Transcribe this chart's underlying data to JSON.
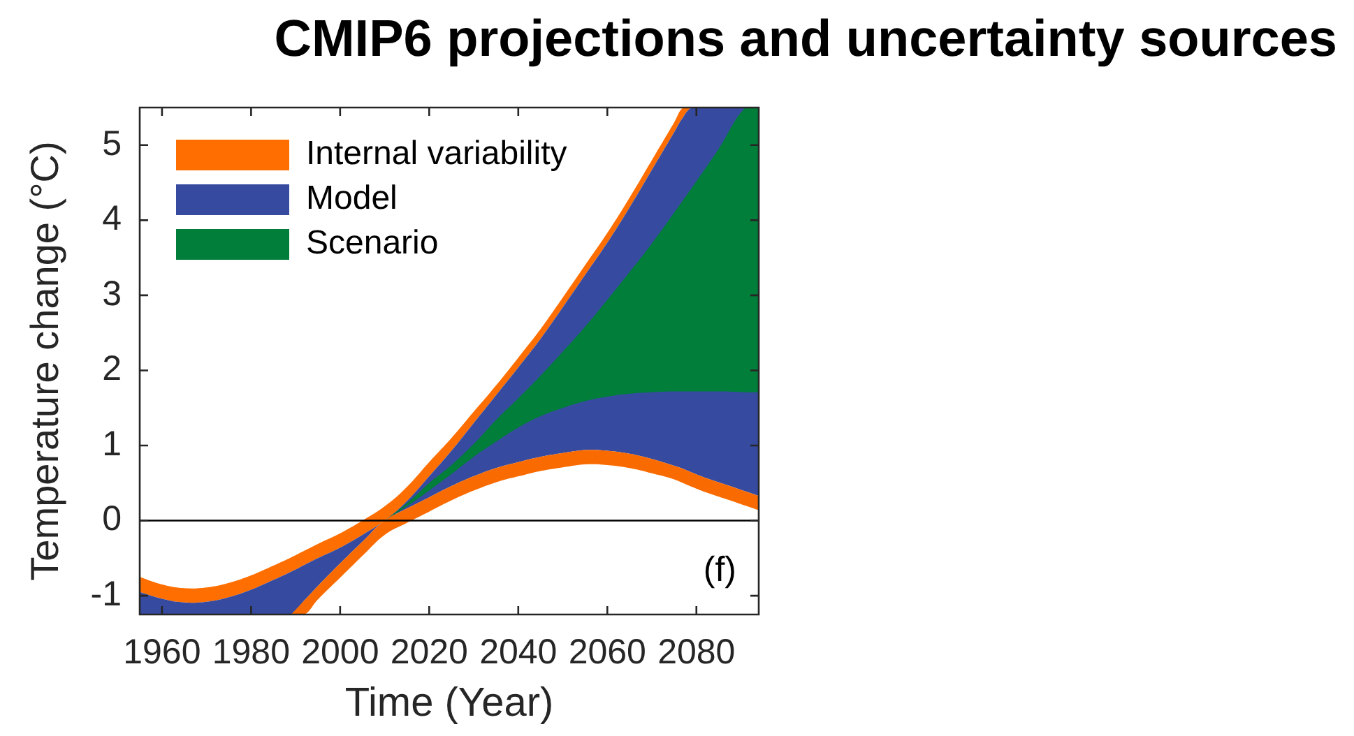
{
  "chart_data": {
    "type": "area",
    "title": "CMIP6 projections and uncertainty sources",
    "xlabel": "Time (Year)",
    "ylabel": "Temperature change (°C)",
    "xlim": [
      1955,
      2094
    ],
    "xticks": [
      1960,
      1980,
      2000,
      2020,
      2040,
      2060,
      2080
    ],
    "ylim": [
      -1.25,
      5.5
    ],
    "yticks": [
      -1,
      0,
      1,
      2,
      3,
      4,
      5
    ],
    "grid": false,
    "legend": "top left",
    "ref_lines": [
      {
        "axis": "y",
        "value": 0,
        "color": "#000000"
      }
    ],
    "annotations": [
      "(f)"
    ],
    "series": [
      {
        "name": "Internal variability",
        "color": "#ff6e00",
        "x": [
          1955,
          1960,
          1965,
          1970,
          1975,
          1980,
          1985,
          1989,
          1992,
          1995,
          2000,
          2005,
          2010,
          2015,
          2020,
          2025,
          2030,
          2035,
          2040,
          2045,
          2050,
          2055,
          2060,
          2065,
          2070,
          2075,
          2077,
          2079,
          2082,
          2086,
          2090,
          2094
        ],
        "values": [
          null,
          null,
          null,
          null,
          null,
          null,
          null,
          null,
          null,
          null,
          null,
          null,
          null,
          null,
          null,
          null,
          null,
          null,
          null,
          null,
          null,
          null,
          null,
          null,
          null,
          null,
          null,
          null,
          null,
          null,
          null,
          null
        ],
        "upper": [
          -0.75,
          -0.85,
          -0.9,
          -0.89,
          -0.83,
          -0.73,
          -0.6,
          -0.49,
          -0.4,
          -0.31,
          -0.17,
          0.0,
          0.19,
          0.45,
          0.78,
          1.1,
          1.45,
          1.8,
          2.17,
          2.55,
          2.97,
          3.4,
          3.83,
          4.3,
          4.8,
          5.3,
          5.5,
          5.5,
          5.5,
          5.5,
          5.5,
          5.5
        ],
        "lower": [
          -0.95,
          -1.04,
          -1.09,
          -1.08,
          -1.02,
          -0.92,
          -0.79,
          -0.68,
          -0.59,
          -0.5,
          -0.36,
          -0.19,
          0.0,
          0.26,
          0.59,
          0.93,
          1.3,
          1.67,
          2.04,
          2.42,
          2.84,
          3.27,
          3.7,
          4.17,
          4.67,
          5.17,
          5.37,
          5.5,
          5.5,
          5.5,
          5.5,
          5.5
        ]
      },
      {
        "name": "Model",
        "color": "#364b9f",
        "x": [
          1955,
          1960,
          1965,
          1970,
          1975,
          1980,
          1985,
          1989,
          1992,
          1995,
          2000,
          2005,
          2010,
          2015,
          2020,
          2025,
          2030,
          2035,
          2040,
          2045,
          2050,
          2055,
          2060,
          2065,
          2070,
          2075,
          2077,
          2079,
          2082,
          2086,
          2090,
          2094
        ],
        "values": [
          null,
          null,
          null,
          null,
          null,
          null,
          null,
          null,
          null,
          null,
          null,
          null,
          null,
          null,
          null,
          null,
          null,
          null,
          null,
          null,
          null,
          null,
          null,
          null,
          null,
          null,
          null,
          null,
          null,
          null,
          null,
          null
        ],
        "upper": [
          -0.95,
          -1.04,
          -1.09,
          -1.08,
          -1.02,
          -0.92,
          -0.79,
          -0.68,
          -0.59,
          -0.5,
          -0.36,
          -0.19,
          0.0,
          0.26,
          0.59,
          0.93,
          1.3,
          1.67,
          2.04,
          2.42,
          2.84,
          3.27,
          3.7,
          4.17,
          4.67,
          5.17,
          5.37,
          5.5,
          5.5,
          5.5,
          5.5,
          5.5
        ],
        "lower": [
          -1.25,
          -1.25,
          -1.25,
          -1.25,
          -1.25,
          -1.25,
          -1.25,
          -1.25,
          -1.06,
          -0.87,
          -0.57,
          -0.28,
          0.0,
          0.16,
          0.31,
          0.46,
          0.59,
          0.7,
          0.78,
          0.85,
          0.9,
          0.94,
          0.93,
          0.89,
          0.82,
          0.73,
          0.69,
          0.64,
          0.57,
          0.49,
          0.41,
          0.33
        ]
      },
      {
        "name": "Scenario",
        "color": "#007e3a",
        "x": [
          2010,
          2015,
          2020,
          2025,
          2030,
          2035,
          2040,
          2045,
          2050,
          2055,
          2060,
          2065,
          2070,
          2075,
          2080,
          2085,
          2091,
          2094
        ],
        "values": [
          null,
          null,
          null,
          null,
          null,
          null,
          null,
          null,
          null,
          null,
          null,
          null,
          null,
          null,
          null,
          null,
          null,
          null
        ],
        "upper": [
          0.0,
          0.23,
          0.5,
          0.74,
          1.02,
          1.34,
          1.63,
          1.93,
          2.25,
          2.58,
          2.94,
          3.31,
          3.69,
          4.1,
          4.52,
          4.95,
          5.5,
          5.5
        ],
        "lower": [
          0.0,
          0.19,
          0.4,
          0.62,
          0.85,
          1.05,
          1.24,
          1.39,
          1.5,
          1.59,
          1.65,
          1.69,
          1.71,
          1.72,
          1.72,
          1.72,
          1.71,
          1.71
        ]
      },
      {
        "color": "#f96b00",
        "x": [
          1989,
          1992,
          1995,
          2000,
          2005,
          2010,
          2015,
          2020,
          2025,
          2030,
          2035,
          2040,
          2045,
          2050,
          2055,
          2060,
          2065,
          2070,
          2075,
          2077,
          2079,
          2082,
          2086,
          2090,
          2094
        ],
        "values": [
          null,
          null,
          null,
          null,
          null,
          null,
          null,
          null,
          null,
          null,
          null,
          null,
          null,
          null,
          null,
          null,
          null,
          null,
          null,
          null,
          null,
          null,
          null,
          null,
          null
        ],
        "upper": [
          -1.25,
          -1.06,
          -0.87,
          -0.57,
          -0.28,
          0.0,
          0.16,
          0.31,
          0.46,
          0.59,
          0.7,
          0.78,
          0.85,
          0.9,
          0.94,
          0.93,
          0.89,
          0.82,
          0.73,
          0.69,
          0.64,
          0.57,
          0.49,
          0.41,
          0.33
        ],
        "lower": [
          -1.25,
          -1.25,
          -1.05,
          -0.76,
          -0.47,
          -0.19,
          -0.03,
          0.12,
          0.27,
          0.4,
          0.51,
          0.59,
          0.66,
          0.71,
          0.75,
          0.74,
          0.7,
          0.63,
          0.55,
          0.5,
          0.45,
          0.38,
          0.3,
          0.22,
          0.14
        ]
      }
    ]
  }
}
